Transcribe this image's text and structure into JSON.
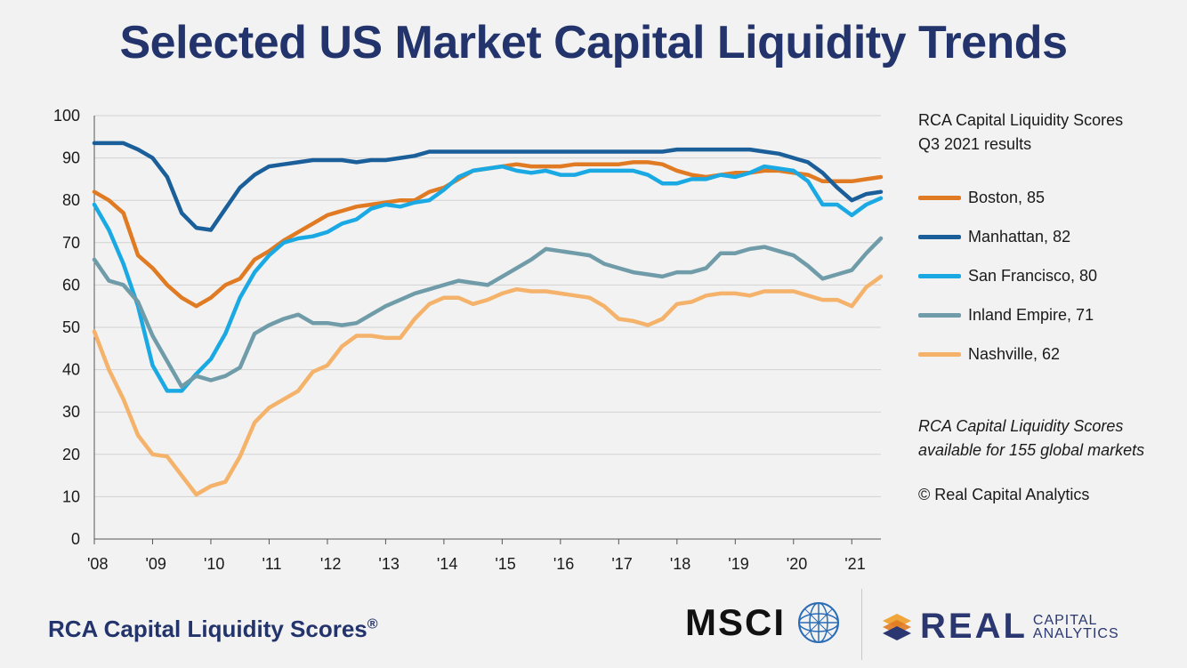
{
  "title": "Selected US Market Capital Liquidity Trends",
  "legend": {
    "heading_line1": "RCA Capital Liquidity Scores",
    "heading_line2": "Q3 2021 results"
  },
  "note": {
    "line1": "RCA Capital Liquidity Scores",
    "line2": "available for 155 global markets"
  },
  "copyright": "© Real Capital Analytics",
  "footer": {
    "title": "RCA Capital Liquidity Scores",
    "registered": "®",
    "msci": "MSCI",
    "real": "REAL",
    "capital": "CAPITAL",
    "analytics": "ANALYTICS"
  },
  "chart_data": {
    "type": "line",
    "title": "Selected US Market Capital Liquidity Trends",
    "xlabel": "",
    "ylabel": "",
    "ylim": [
      0,
      100
    ],
    "xlim": [
      2008.0,
      2021.5
    ],
    "yticks": [
      "0",
      "10",
      "20",
      "30",
      "40",
      "50",
      "60",
      "70",
      "80",
      "90",
      "100"
    ],
    "xticks": [
      {
        "x": 2008,
        "label": "'08"
      },
      {
        "x": 2009,
        "label": "'09"
      },
      {
        "x": 2010,
        "label": "'10"
      },
      {
        "x": 2011,
        "label": "'11"
      },
      {
        "x": 2012,
        "label": "'12"
      },
      {
        "x": 2013,
        "label": "'13"
      },
      {
        "x": 2014,
        "label": "'14"
      },
      {
        "x": 2015,
        "label": "'15"
      },
      {
        "x": 2016,
        "label": "'16"
      },
      {
        "x": 2017,
        "label": "'17"
      },
      {
        "x": 2018,
        "label": "'18"
      },
      {
        "x": 2019,
        "label": "'19"
      },
      {
        "x": 2020,
        "label": "'20"
      },
      {
        "x": 2021,
        "label": "'21"
      }
    ],
    "grid": true,
    "legend_position": "right",
    "x": [
      2008.0,
      2008.25,
      2008.5,
      2008.75,
      2009.0,
      2009.25,
      2009.5,
      2009.75,
      2010.0,
      2010.25,
      2010.5,
      2010.75,
      2011.0,
      2011.25,
      2011.5,
      2011.75,
      2012.0,
      2012.25,
      2012.5,
      2012.75,
      2013.0,
      2013.25,
      2013.5,
      2013.75,
      2014.0,
      2014.25,
      2014.5,
      2014.75,
      2015.0,
      2015.25,
      2015.5,
      2015.75,
      2016.0,
      2016.25,
      2016.5,
      2016.75,
      2017.0,
      2017.25,
      2017.5,
      2017.75,
      2018.0,
      2018.25,
      2018.5,
      2018.75,
      2019.0,
      2019.25,
      2019.5,
      2019.75,
      2020.0,
      2020.25,
      2020.5,
      2020.75,
      2021.0,
      2021.25,
      2021.5
    ],
    "series": [
      {
        "name": "Boston, 85",
        "color": "#e07b24",
        "values": [
          82,
          80,
          77,
          67,
          64,
          60,
          57,
          55,
          57,
          60,
          61.5,
          66,
          68,
          70.5,
          72.5,
          74.5,
          76.5,
          77.5,
          78.5,
          79,
          79.5,
          80,
          80,
          82,
          83,
          85,
          87,
          87.5,
          88,
          88.5,
          88,
          88,
          88,
          88.5,
          88.5,
          88.5,
          88.5,
          89,
          89,
          88.5,
          87,
          86,
          85.5,
          86,
          86.5,
          86.5,
          87,
          87,
          86.5,
          86,
          84.5,
          84.5,
          84.5,
          85,
          85.5
        ]
      },
      {
        "name": "Manhattan, 82",
        "color": "#1a5e9a",
        "values": [
          93.5,
          93.5,
          93.5,
          92,
          90,
          85.5,
          77,
          73.5,
          73,
          78,
          83,
          86,
          88,
          88.5,
          89,
          89.5,
          89.5,
          89.5,
          89,
          89.5,
          89.5,
          90,
          90.5,
          91.5,
          91.5,
          91.5,
          91.5,
          91.5,
          91.5,
          91.5,
          91.5,
          91.5,
          91.5,
          91.5,
          91.5,
          91.5,
          91.5,
          91.5,
          91.5,
          91.5,
          92,
          92,
          92,
          92,
          92,
          92,
          91.5,
          91,
          90,
          89,
          86.5,
          83,
          80,
          81.5,
          82
        ]
      },
      {
        "name": "San Francisco, 80",
        "color": "#1ba9e4",
        "values": [
          79,
          73,
          65,
          55,
          41,
          35,
          35,
          39,
          42.5,
          48.5,
          57,
          63,
          67,
          70,
          71,
          71.5,
          72.5,
          74.5,
          75.5,
          78,
          79,
          78.5,
          79.5,
          80,
          82.5,
          85.5,
          87,
          87.5,
          88,
          87,
          86.5,
          87,
          86,
          86,
          87,
          87,
          87,
          87,
          86,
          84,
          84,
          85,
          85,
          86,
          85.5,
          86.5,
          88,
          87.5,
          87,
          84.5,
          79,
          79,
          76.5,
          79,
          80.5
        ]
      },
      {
        "name": "Inland Empire, 71",
        "color": "#6f9ca8",
        "values": [
          66,
          61,
          60,
          56,
          48,
          42,
          36,
          38.5,
          37.5,
          38.5,
          40.5,
          48.5,
          50.5,
          52,
          53,
          51,
          51,
          50.5,
          51,
          53,
          55,
          56.5,
          58,
          59,
          60,
          61,
          60.5,
          60,
          62,
          64,
          66,
          68.5,
          68,
          67.5,
          67,
          65,
          64,
          63,
          62.5,
          62,
          63,
          63,
          64,
          67.5,
          67.5,
          68.5,
          69,
          68,
          67,
          64.5,
          61.5,
          62.5,
          63.5,
          67.5,
          71
        ]
      },
      {
        "name": "Nashville, 62",
        "color": "#f4b26b",
        "values": [
          49,
          40,
          33,
          24.5,
          20,
          19.5,
          15,
          10.5,
          12.5,
          13.5,
          19.5,
          27.5,
          31,
          33,
          35,
          39.5,
          41,
          45.5,
          48,
          48,
          47.5,
          47.5,
          52,
          55.5,
          57,
          57,
          55.5,
          56.5,
          58,
          59,
          58.5,
          58.5,
          58,
          57.5,
          57,
          55,
          52,
          51.5,
          50.5,
          52,
          55.5,
          56,
          57.5,
          58,
          58,
          57.5,
          58.5,
          58.5,
          58.5,
          57.5,
          56.5,
          56.5,
          55,
          59.5,
          62
        ]
      }
    ]
  }
}
